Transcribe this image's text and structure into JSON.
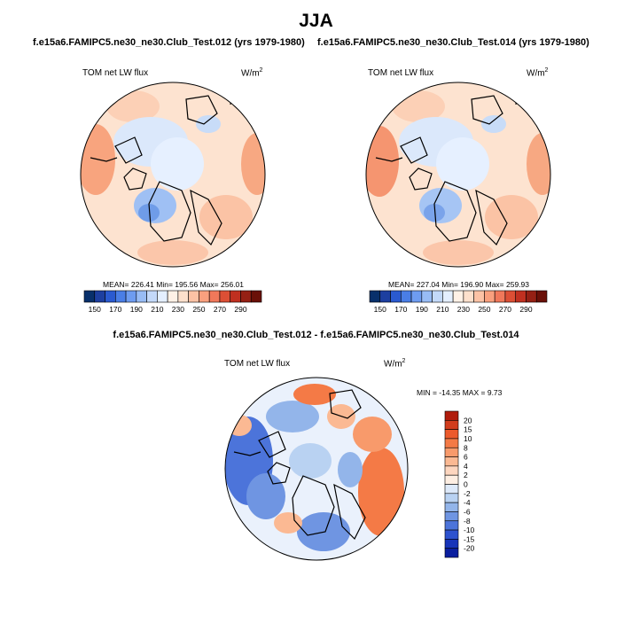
{
  "figure": {
    "season": "JJA",
    "left_title": "f.e15a6.FAMIPC5.ne30_ne30.Club_Test.012 (yrs 1979-1980)",
    "right_title": "f.e15a6.FAMIPC5.ne30_ne30.Club_Test.014 (yrs 1979-1980)",
    "diff_title": "f.e15a6.FAMIPC5.ne30_ne30.Club_Test.012 - f.e15a6.FAMIPC5.ne30_ne30.Club_Test.014"
  },
  "chart_data": [
    {
      "type": "heatmap",
      "projection": "north-polar-stereographic",
      "variable": "TOM net LW flux",
      "units_base": "W/m",
      "units_exp": "2",
      "stats": "MEAN= 226.41  Min= 195.56  Max= 256.01",
      "mean": 226.41,
      "min": 195.56,
      "max": 256.01,
      "colorbar": {
        "orientation": "horizontal",
        "tick_labels": [
          "150",
          "170",
          "190",
          "210",
          "230",
          "250",
          "270",
          "290"
        ],
        "colors": [
          "#08306b",
          "#1d3fa0",
          "#2a5ad0",
          "#4a7ee6",
          "#6e9cf0",
          "#98bcf5",
          "#c3d9f9",
          "#e4efff",
          "#fff1e6",
          "#fde0cc",
          "#fcc2a5",
          "#f9a07e",
          "#f0785a",
          "#dc4f35",
          "#c03020",
          "#952014",
          "#6a1008"
        ]
      }
    },
    {
      "type": "heatmap",
      "projection": "north-polar-stereographic",
      "variable": "TOM net LW flux",
      "units_base": "W/m",
      "units_exp": "2",
      "stats": "MEAN= 227.04  Min= 196.90  Max= 259.93",
      "mean": 227.04,
      "min": 196.9,
      "max": 259.93,
      "colorbar": {
        "orientation": "horizontal",
        "tick_labels": [
          "150",
          "170",
          "190",
          "210",
          "230",
          "250",
          "270",
          "290"
        ],
        "colors": [
          "#08306b",
          "#1d3fa0",
          "#2a5ad0",
          "#4a7ee6",
          "#6e9cf0",
          "#98bcf5",
          "#c3d9f9",
          "#e4efff",
          "#fff1e6",
          "#fde0cc",
          "#fcc2a5",
          "#f9a07e",
          "#f0785a",
          "#dc4f35",
          "#c03020",
          "#952014",
          "#6a1008"
        ]
      }
    },
    {
      "type": "heatmap",
      "projection": "north-polar-stereographic",
      "variable": "TOM net LW flux",
      "units_base": "W/m",
      "units_exp": "2",
      "stats": "MIN = -14.35 MAX =   9.73",
      "min": -14.35,
      "max": 9.73,
      "colorbar": {
        "orientation": "vertical",
        "tick_labels": [
          "20",
          "15",
          "10",
          "8",
          "6",
          "4",
          "2",
          "0",
          "-2",
          "-4",
          "-6",
          "-8",
          "-10",
          "-15",
          "-20"
        ],
        "colors": [
          "#b01c0c",
          "#d23d1d",
          "#ec5a2c",
          "#f47a46",
          "#f89a6b",
          "#fbb993",
          "#fdd6bf",
          "#fdeee2",
          "#dde9f9",
          "#b9d2f2",
          "#93b5ea",
          "#6f95e2",
          "#4c74da",
          "#2d52cf",
          "#1734b9",
          "#0a1e9e"
        ]
      }
    }
  ]
}
